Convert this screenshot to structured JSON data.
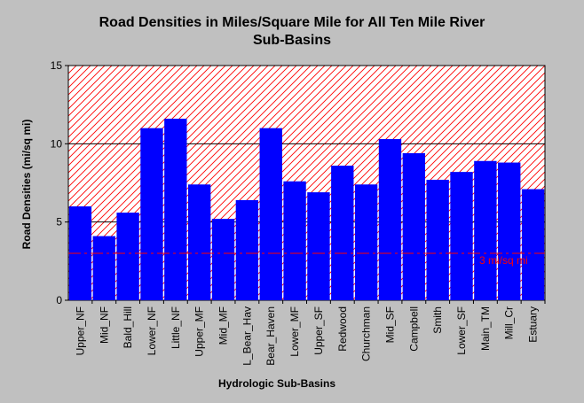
{
  "chart_data": {
    "type": "bar",
    "title": "Road Densities in Miles/Square Mile for All Ten Mile River Sub-Basins",
    "title_lines": [
      "Road Densities in Miles/Square Mile for All Ten Mile River",
      "Sub-Basins"
    ],
    "xlabel": "Hydrologic Sub-Basins",
    "ylabel": "Road Densities (mi/sq mi)",
    "ylim": [
      0,
      15
    ],
    "yticks": [
      "0",
      "5",
      "10",
      "15"
    ],
    "categories": [
      "Upper_NF",
      "Mid_NF",
      "Bald_Hill",
      "Lower_NF",
      "Little_NF",
      "Upper_MF",
      "Mid_MF",
      "L_Bear_Hav",
      "Bear_Haven",
      "Lower_MF",
      "Upper_SF",
      "Redwood",
      "Churchman",
      "Mid_SF",
      "Campbell",
      "Smith",
      "Lower_SF",
      "Main_TM",
      "Mill_Cr",
      "Estuary"
    ],
    "values": [
      6.0,
      4.1,
      5.6,
      11.0,
      11.6,
      7.4,
      5.2,
      6.4,
      11.0,
      7.6,
      6.9,
      8.6,
      7.4,
      10.3,
      9.4,
      7.7,
      8.2,
      8.9,
      8.8,
      7.1
    ],
    "reference_line": {
      "value": 3,
      "label": "3 mi/sq mi"
    },
    "grid": true,
    "legend": "none",
    "colors": {
      "bar": "#0000ff",
      "hatch": "#ff0000",
      "reference": "#ff0000",
      "background": "#c0c0c0",
      "plot": "#ffffff"
    }
  }
}
